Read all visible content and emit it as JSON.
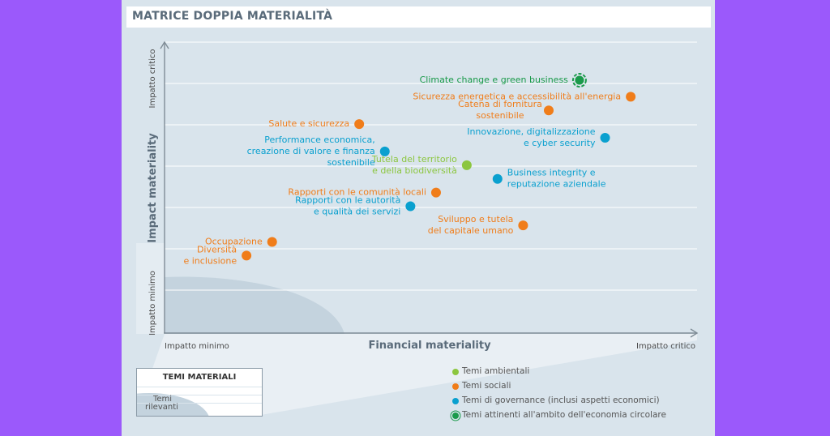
{
  "title": "MATRICE DOPPIA MATERIALITÀ",
  "colors": {
    "ambientali": "#8cc63f",
    "sociali": "#f07d1a",
    "governance": "#0aa0cf",
    "circolare": "#1a9a4a",
    "axis": "#7f8c96",
    "grid": "#ffffff",
    "relevant_zone": "#c4d3de"
  },
  "chart_data": {
    "type": "scatter",
    "xlabel": "Financial materiality",
    "ylabel": "Impact materiality",
    "x_min_label": "Impatto minimo",
    "x_max_label": "Impatto critico",
    "y_min_label": "Impatto minimo",
    "y_max_label": "Impatto critico",
    "xlim": [
      0,
      100
    ],
    "ylim": [
      0,
      100
    ],
    "grid": "horizontal",
    "points": [
      {
        "label": [
          "Climate change e green business"
        ],
        "x": 81,
        "y": 92,
        "category": "circolare"
      },
      {
        "label": [
          "Sicurezza energetica e accessibilità all'energia"
        ],
        "x": 91,
        "y": 86,
        "category": "sociali"
      },
      {
        "label": [
          "Catena di fornitura",
          "sostenibile"
        ],
        "x": 75,
        "y": 81,
        "category": "sociali"
      },
      {
        "label": [
          "Salute e sicurezza"
        ],
        "x": 38,
        "y": 76,
        "category": "sociali"
      },
      {
        "label": [
          "Innovazione, digitalizzazione",
          "e cyber security"
        ],
        "x": 86,
        "y": 71,
        "category": "governance"
      },
      {
        "label": [
          "Performance economica,",
          "creazione di valore e finanza",
          "sostenibile"
        ],
        "x": 43,
        "y": 66,
        "category": "governance"
      },
      {
        "label": [
          "Tutela del territorio",
          "e della biodiversità"
        ],
        "x": 59,
        "y": 61,
        "category": "ambientali"
      },
      {
        "label": [
          "Business integrity e",
          "reputazione aziendale"
        ],
        "x": 65,
        "y": 56,
        "category": "governance"
      },
      {
        "label": [
          "Rapporti con le comunità locali"
        ],
        "x": 53,
        "y": 51,
        "category": "sociali"
      },
      {
        "label": [
          "Rapporti con le autorità",
          "e qualità dei servizi"
        ],
        "x": 48,
        "y": 46,
        "category": "governance"
      },
      {
        "label": [
          "Sviluppo e tutela",
          "del capitale umano"
        ],
        "x": 70,
        "y": 39,
        "category": "sociali"
      },
      {
        "label": [
          "Occupazione"
        ],
        "x": 21,
        "y": 33,
        "category": "sociali"
      },
      {
        "label": [
          "Diversità",
          "e inclusione"
        ],
        "x": 16,
        "y": 28,
        "category": "sociali"
      }
    ],
    "legend": [
      {
        "label": "Temi ambientali",
        "category": "ambientali"
      },
      {
        "label": "Temi sociali",
        "category": "sociali"
      },
      {
        "label": "Temi di governance (inclusi aspetti economici)",
        "category": "governance"
      },
      {
        "label": "Temi attinenti all'ambito dell'economia circolare",
        "category": "circolare"
      }
    ]
  },
  "materiality_box": {
    "title": "TEMI MATERIALI",
    "subtitle_1": "Temi",
    "subtitle_2": "rilevanti"
  }
}
